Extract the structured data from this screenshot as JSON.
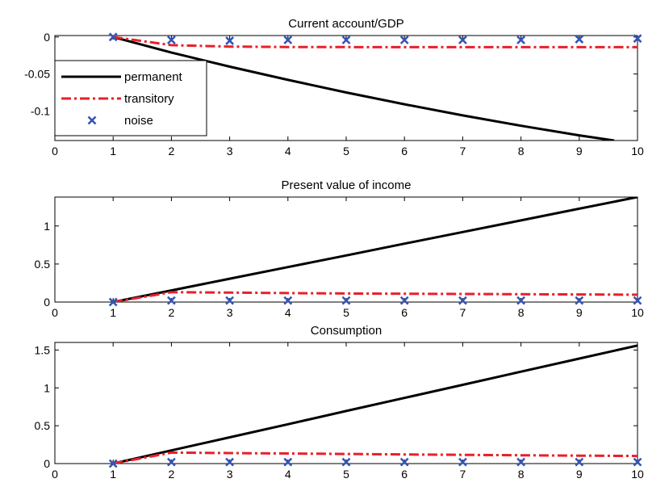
{
  "chart_data": [
    {
      "type": "line",
      "title": "Current account/GDP",
      "xlabel": "",
      "ylabel": "",
      "xlim": [
        0,
        10
      ],
      "ylim": [
        -0.14,
        0.002
      ],
      "xticks": [
        0,
        1,
        2,
        3,
        4,
        5,
        6,
        7,
        8,
        9,
        10
      ],
      "yticks": [
        0,
        -0.05,
        -0.1
      ],
      "ytick_labels": [
        "0",
        "-0.05",
        "-0.1"
      ],
      "grid": false,
      "legend": {
        "position": "top-left",
        "entries": [
          "permanent",
          "transitory",
          "noise"
        ]
      },
      "series": [
        {
          "name": "permanent",
          "style": "solid",
          "color": "#000000",
          "x": [
            1,
            2,
            3,
            4,
            5,
            6,
            7,
            8,
            9,
            9.6
          ],
          "y": [
            0,
            -0.021,
            -0.04,
            -0.058,
            -0.075,
            -0.091,
            -0.106,
            -0.12,
            -0.133,
            -0.14
          ]
        },
        {
          "name": "transitory",
          "style": "dashdot",
          "color": "#e8202a",
          "x": [
            1,
            2,
            3,
            4,
            5,
            6,
            7,
            8,
            9,
            10
          ],
          "y": [
            0,
            -0.011,
            -0.013,
            -0.0135,
            -0.0136,
            -0.0137,
            -0.0137,
            -0.0137,
            -0.0137,
            -0.0137
          ]
        },
        {
          "name": "noise",
          "style": "marker-x",
          "color": "#3654b4",
          "x": [
            1,
            2,
            3,
            4,
            5,
            6,
            7,
            8,
            9,
            10
          ],
          "y": [
            0,
            -0.004,
            -0.005,
            -0.004,
            -0.004,
            -0.004,
            -0.004,
            -0.004,
            -0.003,
            -0.002
          ]
        }
      ]
    },
    {
      "type": "line",
      "title": "Present value of income",
      "xlabel": "",
      "ylabel": "",
      "xlim": [
        0,
        10
      ],
      "ylim": [
        0,
        1.38
      ],
      "xticks": [
        0,
        1,
        2,
        3,
        4,
        5,
        6,
        7,
        8,
        9,
        10
      ],
      "yticks": [
        0,
        0.5,
        1
      ],
      "ytick_labels": [
        "0",
        "0.5",
        "1"
      ],
      "grid": false,
      "series": [
        {
          "name": "permanent",
          "style": "solid",
          "color": "#000000",
          "x": [
            1,
            2,
            3,
            4,
            5,
            6,
            7,
            8,
            9,
            10
          ],
          "y": [
            0,
            0.153,
            0.307,
            0.46,
            0.613,
            0.767,
            0.92,
            1.073,
            1.227,
            1.38
          ]
        },
        {
          "name": "transitory",
          "style": "dashdot",
          "color": "#e8202a",
          "x": [
            1,
            2,
            3,
            4,
            5,
            6,
            7,
            8,
            9,
            10
          ],
          "y": [
            0,
            0.13,
            0.124,
            0.118,
            0.113,
            0.109,
            0.106,
            0.103,
            0.1,
            0.097
          ]
        },
        {
          "name": "noise",
          "style": "marker-x",
          "color": "#3654b4",
          "x": [
            1,
            2,
            3,
            4,
            5,
            6,
            7,
            8,
            9,
            10
          ],
          "y": [
            0,
            0.02,
            0.02,
            0.02,
            0.02,
            0.02,
            0.02,
            0.02,
            0.02,
            0.02
          ]
        }
      ]
    },
    {
      "type": "line",
      "title": "Consumption",
      "xlabel": "",
      "ylabel": "",
      "xlim": [
        0,
        10
      ],
      "ylim": [
        0,
        1.6
      ],
      "xticks": [
        0,
        1,
        2,
        3,
        4,
        5,
        6,
        7,
        8,
        9,
        10
      ],
      "yticks": [
        0,
        0.5,
        1,
        1.5
      ],
      "ytick_labels": [
        "0",
        "0.5",
        "1",
        "1.5"
      ],
      "grid": false,
      "series": [
        {
          "name": "permanent",
          "style": "solid",
          "color": "#000000",
          "x": [
            1,
            2,
            3,
            4,
            5,
            6,
            7,
            8,
            9,
            10
          ],
          "y": [
            0,
            0.174,
            0.347,
            0.52,
            0.694,
            0.867,
            1.04,
            1.214,
            1.387,
            1.56
          ]
        },
        {
          "name": "transitory",
          "style": "dashdot",
          "color": "#e8202a",
          "x": [
            1,
            2,
            3,
            4,
            5,
            6,
            7,
            8,
            9,
            10
          ],
          "y": [
            0,
            0.145,
            0.139,
            0.133,
            0.127,
            0.121,
            0.115,
            0.11,
            0.105,
            0.1
          ]
        },
        {
          "name": "noise",
          "style": "marker-x",
          "color": "#3654b4",
          "x": [
            1,
            2,
            3,
            4,
            5,
            6,
            7,
            8,
            9,
            10
          ],
          "y": [
            0,
            0.02,
            0.02,
            0.02,
            0.02,
            0.02,
            0.02,
            0.02,
            0.02,
            0.02
          ]
        }
      ]
    }
  ]
}
